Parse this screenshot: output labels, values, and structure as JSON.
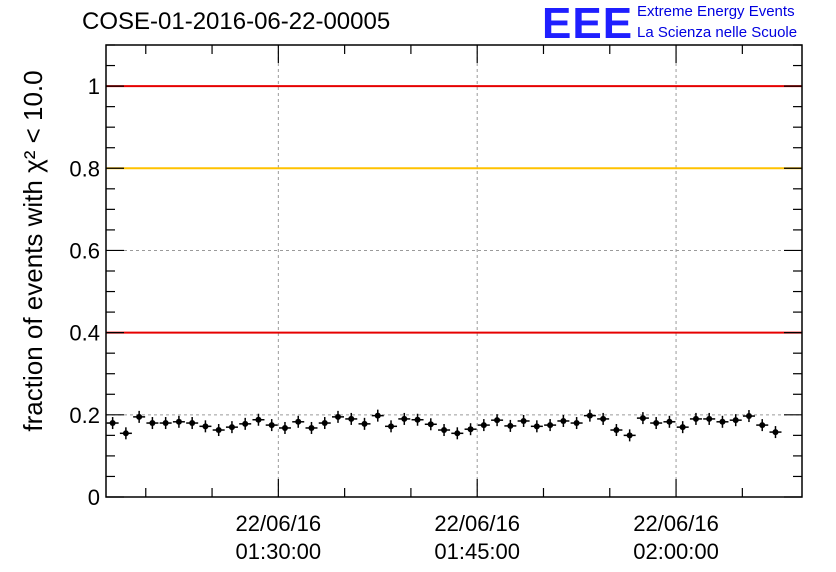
{
  "header": {
    "title": "COSE-01-2016-06-22-00005",
    "logo_mark": "EEE",
    "logo_line1": "Extreme Energy Events",
    "logo_line2": "La Scienza nelle Scuole",
    "logo_color": "#1f1fff"
  },
  "chart_data": {
    "type": "scatter",
    "ylabel": "fraction of events with χ² < 10.0",
    "ylim": [
      0,
      1.1
    ],
    "yticks": [
      0,
      0.2,
      0.4,
      0.6,
      0.8,
      1
    ],
    "ytick_labels": [
      "0",
      "0.2",
      "0.4",
      "0.6",
      "0.8",
      "1"
    ],
    "xlim": [
      "2016-06-22 01:17:00",
      "2016-06-22 02:09:30"
    ],
    "xticks": [
      "2016-06-22 01:30:00",
      "2016-06-22 01:45:00",
      "2016-06-22 02:00:00"
    ],
    "xtick_labels": [
      [
        "22/06/16",
        "01:30:00"
      ],
      [
        "22/06/16",
        "01:45:00"
      ],
      [
        "22/06/16",
        "02:00:00"
      ]
    ],
    "grid": true,
    "reference_lines": [
      {
        "y": 1.0,
        "color": "#e60000"
      },
      {
        "y": 0.8,
        "color": "#ffc200"
      },
      {
        "y": 0.4,
        "color": "#e60000"
      }
    ],
    "point_color": "#000000",
    "points": [
      {
        "x": "2016-06-22 01:17:30",
        "y": 0.18
      },
      {
        "x": "2016-06-22 01:18:30",
        "y": 0.155
      },
      {
        "x": "2016-06-22 01:19:30",
        "y": 0.195
      },
      {
        "x": "2016-06-22 01:20:30",
        "y": 0.18
      },
      {
        "x": "2016-06-22 01:21:30",
        "y": 0.18
      },
      {
        "x": "2016-06-22 01:22:30",
        "y": 0.183
      },
      {
        "x": "2016-06-22 01:23:30",
        "y": 0.18
      },
      {
        "x": "2016-06-22 01:24:30",
        "y": 0.172
      },
      {
        "x": "2016-06-22 01:25:30",
        "y": 0.163
      },
      {
        "x": "2016-06-22 01:26:30",
        "y": 0.17
      },
      {
        "x": "2016-06-22 01:27:30",
        "y": 0.178
      },
      {
        "x": "2016-06-22 01:28:30",
        "y": 0.188
      },
      {
        "x": "2016-06-22 01:29:30",
        "y": 0.175
      },
      {
        "x": "2016-06-22 01:30:30",
        "y": 0.168
      },
      {
        "x": "2016-06-22 01:31:30",
        "y": 0.183
      },
      {
        "x": "2016-06-22 01:32:30",
        "y": 0.168
      },
      {
        "x": "2016-06-22 01:33:30",
        "y": 0.18
      },
      {
        "x": "2016-06-22 01:34:30",
        "y": 0.195
      },
      {
        "x": "2016-06-22 01:35:30",
        "y": 0.19
      },
      {
        "x": "2016-06-22 01:36:30",
        "y": 0.178
      },
      {
        "x": "2016-06-22 01:37:30",
        "y": 0.198
      },
      {
        "x": "2016-06-22 01:38:30",
        "y": 0.172
      },
      {
        "x": "2016-06-22 01:39:30",
        "y": 0.19
      },
      {
        "x": "2016-06-22 01:40:30",
        "y": 0.188
      },
      {
        "x": "2016-06-22 01:41:30",
        "y": 0.177
      },
      {
        "x": "2016-06-22 01:42:30",
        "y": 0.163
      },
      {
        "x": "2016-06-22 01:43:30",
        "y": 0.155
      },
      {
        "x": "2016-06-22 01:44:30",
        "y": 0.165
      },
      {
        "x": "2016-06-22 01:45:30",
        "y": 0.175
      },
      {
        "x": "2016-06-22 01:46:30",
        "y": 0.187
      },
      {
        "x": "2016-06-22 01:47:30",
        "y": 0.173
      },
      {
        "x": "2016-06-22 01:48:30",
        "y": 0.185
      },
      {
        "x": "2016-06-22 01:49:30",
        "y": 0.172
      },
      {
        "x": "2016-06-22 01:50:30",
        "y": 0.175
      },
      {
        "x": "2016-06-22 01:51:30",
        "y": 0.185
      },
      {
        "x": "2016-06-22 01:52:30",
        "y": 0.18
      },
      {
        "x": "2016-06-22 01:53:30",
        "y": 0.198
      },
      {
        "x": "2016-06-22 01:54:30",
        "y": 0.19
      },
      {
        "x": "2016-06-22 01:55:30",
        "y": 0.163
      },
      {
        "x": "2016-06-22 01:56:30",
        "y": 0.15
      },
      {
        "x": "2016-06-22 01:57:30",
        "y": 0.192
      },
      {
        "x": "2016-06-22 01:58:30",
        "y": 0.18
      },
      {
        "x": "2016-06-22 01:59:30",
        "y": 0.183
      },
      {
        "x": "2016-06-22 02:00:30",
        "y": 0.17
      },
      {
        "x": "2016-06-22 02:01:30",
        "y": 0.19
      },
      {
        "x": "2016-06-22 02:02:30",
        "y": 0.19
      },
      {
        "x": "2016-06-22 02:03:30",
        "y": 0.183
      },
      {
        "x": "2016-06-22 02:04:30",
        "y": 0.187
      },
      {
        "x": "2016-06-22 02:05:30",
        "y": 0.197
      },
      {
        "x": "2016-06-22 02:06:30",
        "y": 0.175
      },
      {
        "x": "2016-06-22 02:07:30",
        "y": 0.158
      }
    ]
  }
}
